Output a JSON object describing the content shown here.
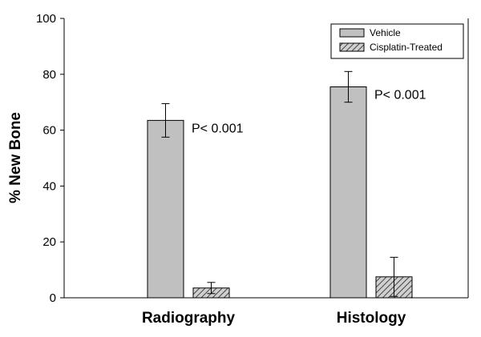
{
  "chart_data": {
    "type": "bar",
    "title": "",
    "xlabel": "",
    "ylabel": "% New Bone",
    "ylim": [
      0,
      100
    ],
    "yticks": [
      0,
      20,
      40,
      60,
      80,
      100
    ],
    "categories": [
      "Radiography",
      "Histology"
    ],
    "series": [
      {
        "name": "Vehicle",
        "values": [
          63.5,
          75.5
        ],
        "errors": [
          6,
          5.5
        ],
        "fill": "#c0c0c0",
        "hatch": false
      },
      {
        "name": "Cisplatin-Treated",
        "values": [
          3.5,
          7.5
        ],
        "errors": [
          2,
          7
        ],
        "fill": "#a8a8a8",
        "hatch": true
      }
    ],
    "annotations": [
      "P< 0.001",
      "P< 0.001"
    ],
    "grid": false,
    "legend_position": "top-right",
    "colors": {
      "axis": "#000000",
      "bar_stroke": "#000000"
    }
  }
}
